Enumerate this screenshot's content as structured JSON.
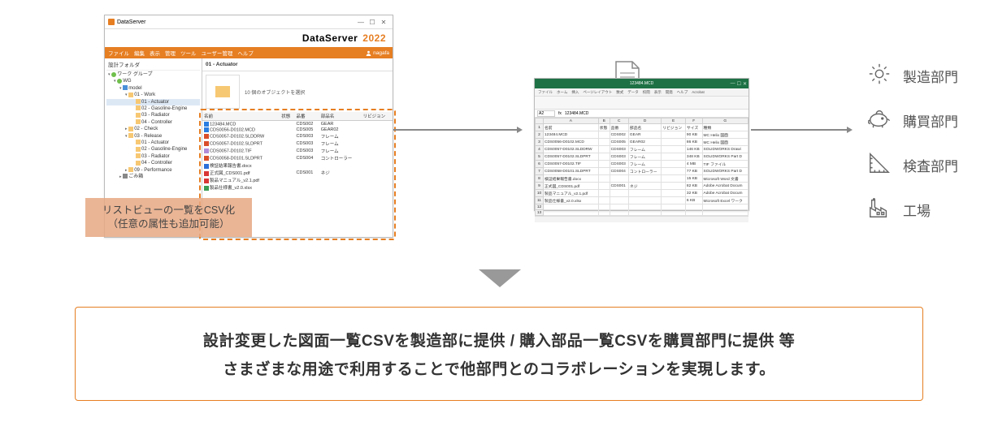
{
  "colors": {
    "accent": "#e67e22",
    "excel_green": "#1e7145",
    "arrow": "#888888",
    "text": "#333333"
  },
  "ds": {
    "title": "DataServer",
    "brand": "DataServer",
    "year": "2022",
    "menu": [
      "ファイル",
      "編集",
      "表示",
      "管理",
      "ツール",
      "ユーザー管理",
      "ヘルプ"
    ],
    "user": "nagafa",
    "tree_header": "設計フォルダ",
    "tree": [
      {
        "depth": 0,
        "icon": "grn",
        "label": "ワーク グループ",
        "expand": "▾"
      },
      {
        "depth": 1,
        "icon": "grn",
        "label": "WG",
        "expand": "▾"
      },
      {
        "depth": 2,
        "icon": "blu",
        "label": "model",
        "expand": "▾"
      },
      {
        "depth": 3,
        "icon": "fld",
        "label": "01 - Work",
        "expand": "▾"
      },
      {
        "depth": 4,
        "icon": "fld",
        "label": "01 - Actuator",
        "sel": true
      },
      {
        "depth": 4,
        "icon": "fld",
        "label": "02 - Gasoline-Engine"
      },
      {
        "depth": 4,
        "icon": "fld",
        "label": "03 - Radiator"
      },
      {
        "depth": 4,
        "icon": "fld",
        "label": "04 - Controller"
      },
      {
        "depth": 3,
        "icon": "fld",
        "label": "02 - Check",
        "expand": "▸"
      },
      {
        "depth": 3,
        "icon": "fld",
        "label": "03 - Release",
        "expand": "▾"
      },
      {
        "depth": 4,
        "icon": "fld",
        "label": "01 - Actuator"
      },
      {
        "depth": 4,
        "icon": "fld",
        "label": "02 - Gasoline-Engine"
      },
      {
        "depth": 4,
        "icon": "fld",
        "label": "03 - Radiator"
      },
      {
        "depth": 4,
        "icon": "fld",
        "label": "04 - Controller"
      },
      {
        "depth": 3,
        "icon": "fld",
        "label": "09 - Performance",
        "expand": "▸"
      },
      {
        "depth": 2,
        "icon": "trash",
        "label": "ごみ箱",
        "expand": "▸"
      }
    ],
    "path_title": "01 - Actuator",
    "path_sub": "10 個のオブジェクトを選択",
    "list_cols": [
      "名前",
      "状態",
      "品番",
      "部品名",
      "リビジョン"
    ],
    "list_rows": [
      {
        "icon": "mc",
        "name": "123484.MCD",
        "status": "",
        "code": "CDS002",
        "part": "GEAR",
        "rev": ""
      },
      {
        "icon": "mc",
        "name": "CDS0056-D0102.MCD",
        "status": "",
        "code": "CDS005",
        "part": "GEAR02",
        "rev": ""
      },
      {
        "icon": "sld",
        "name": "CDS0057-D0102.SLDDRW",
        "status": "",
        "code": "CDS003",
        "part": "フレーム",
        "rev": ""
      },
      {
        "icon": "sld",
        "name": "CDS0057-D0102.SLDPRT",
        "status": "",
        "code": "CDS003",
        "part": "フレーム",
        "rev": ""
      },
      {
        "icon": "tif",
        "name": "CDS0057-D0102.TIF",
        "status": "",
        "code": "CDS003",
        "part": "フレーム",
        "rev": ""
      },
      {
        "icon": "sld",
        "name": "CDS0058-D0101.SLDPRT",
        "status": "",
        "code": "CDS004",
        "part": "コントローラー",
        "rev": ""
      },
      {
        "icon": "doc",
        "name": "検証結果報告書.docx",
        "status": "",
        "code": "",
        "part": "",
        "rev": ""
      },
      {
        "icon": "pdf",
        "name": "正式図_CDS001.pdf",
        "status": "",
        "code": "CDS001",
        "part": "ネジ",
        "rev": ""
      },
      {
        "icon": "pdf",
        "name": "製品マニュアル_v2.1.pdf",
        "status": "",
        "code": "",
        "part": "",
        "rev": ""
      },
      {
        "icon": "xls",
        "name": "製品仕様書_v2.0.xlsx",
        "status": "",
        "code": "",
        "part": "",
        "rev": ""
      }
    ]
  },
  "callout": {
    "line1": "リストビューの一覧をCSV化",
    "line2": "（任意の属性も追加可能）"
  },
  "excel": {
    "title": "123484.MCD",
    "ribbon": [
      "ファイル",
      "ホーム",
      "挿入",
      "ページレイアウト",
      "数式",
      "データ",
      "校閲",
      "表示",
      "開発",
      "ヘルプ",
      "Acrobat"
    ],
    "fx_cell": "A2",
    "fx_value": "123484.MCD",
    "col_letters": [
      "",
      "A",
      "B",
      "C",
      "D",
      "E",
      "F",
      "G"
    ],
    "header_row": [
      "1",
      "名前",
      "状態",
      "品番",
      "部品名",
      "リビジョン",
      "サイズ",
      "種類"
    ],
    "rows": [
      [
        "2",
        "123484.MCD",
        "",
        "CDS002",
        "GEAR",
        "",
        "90 KB",
        "MC Helix 図面"
      ],
      [
        "3",
        "CDS0056-D0102.MCD",
        "",
        "CDS005",
        "GEAR02",
        "",
        "86 KB",
        "MC Helix 図面"
      ],
      [
        "4",
        "CDS0057-D0102.SLDDRW",
        "",
        "CDS003",
        "フレーム",
        "",
        "146 KB",
        "SOLIDWORKS Drawi"
      ],
      [
        "5",
        "CDS0057-D0102.SLDPRT",
        "",
        "CDS003",
        "フレーム",
        "",
        "348 KB",
        "SOLIDWORKS Part D"
      ],
      [
        "6",
        "CDS0057-D0102.TIF",
        "",
        "CDS003",
        "フレーム",
        "",
        "4 MB",
        "TIF ファイル"
      ],
      [
        "7",
        "CDS0058-D0101.SLDPRT",
        "",
        "CDS004",
        "コントローラー",
        "",
        "77 KB",
        "SOLIDWORKS Part D"
      ],
      [
        "8",
        "検証結果報告書.docx",
        "",
        "",
        "",
        "",
        "15 KB",
        "Microsoft Word 文書"
      ],
      [
        "9",
        "正式図_CDS001.pdf",
        "",
        "CDS001",
        "ネジ",
        "",
        "82 KB",
        "Adobe Acrobat Docum"
      ],
      [
        "10",
        "製品マニュアル_v2.1.pdf",
        "",
        "",
        "",
        "",
        "32 KB",
        "Adobe Acrobat Docum"
      ],
      [
        "11",
        "製品仕様書_v2.0.xlsx",
        "",
        "",
        "",
        "",
        "6 KB",
        "Microsoft Excel ワーク"
      ],
      [
        "12",
        "",
        "",
        "",
        "",
        "",
        "",
        ""
      ],
      [
        "13",
        "",
        "",
        "",
        "",
        "",
        "",
        ""
      ]
    ]
  },
  "departments": [
    {
      "icon": "gear",
      "label": "製造部門"
    },
    {
      "icon": "piggy",
      "label": "購買部門"
    },
    {
      "icon": "ruler",
      "label": "検査部門"
    },
    {
      "icon": "factory",
      "label": "工場"
    }
  ],
  "bottom": {
    "line1": "設計変更した図面一覧CSVを製造部に提供 / 購入部品一覧CSVを購買部門に提供 等",
    "line2": "さまざまな用途で利用することで他部門とのコラボレーションを実現します。"
  }
}
